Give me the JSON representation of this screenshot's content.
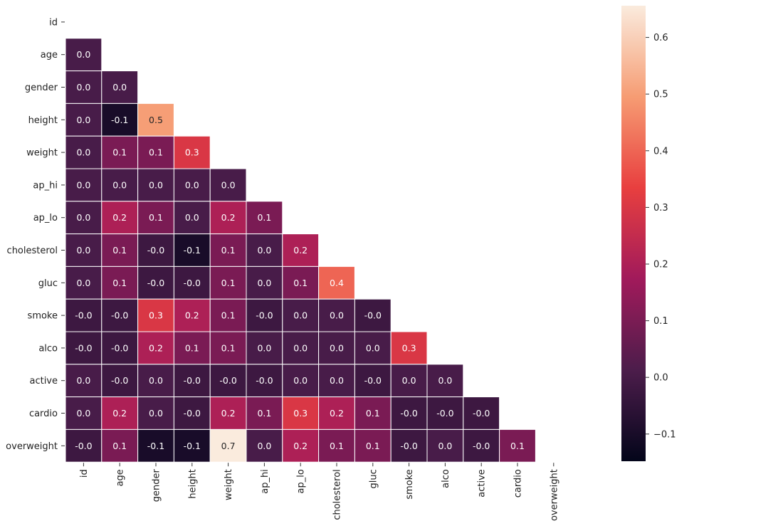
{
  "chart_data": {
    "type": "heatmap",
    "title": "",
    "colormap": "rocket",
    "mask": "upper triangle including diagonal",
    "labels": [
      "id",
      "age",
      "gender",
      "height",
      "weight",
      "ap_hi",
      "ap_lo",
      "cholesterol",
      "gluc",
      "smoke",
      "alco",
      "active",
      "cardio",
      "overweight"
    ],
    "rows": [
      [],
      [
        "0.0"
      ],
      [
        "0.0",
        "0.0"
      ],
      [
        "0.0",
        "-0.1",
        "0.5"
      ],
      [
        "0.0",
        "0.1",
        "0.1",
        "0.3"
      ],
      [
        "0.0",
        "0.0",
        "0.0",
        "0.0",
        "0.0"
      ],
      [
        "0.0",
        "0.2",
        "0.1",
        "0.0",
        "0.2",
        "0.1"
      ],
      [
        "0.0",
        "0.1",
        "-0.0",
        "-0.1",
        "0.1",
        "0.0",
        "0.2"
      ],
      [
        "0.0",
        "0.1",
        "-0.0",
        "-0.0",
        "0.1",
        "0.0",
        "0.1",
        "0.4"
      ],
      [
        "-0.0",
        "-0.0",
        "0.3",
        "0.2",
        "0.1",
        "-0.0",
        "0.0",
        "0.0",
        "-0.0"
      ],
      [
        "-0.0",
        "-0.0",
        "0.2",
        "0.1",
        "0.1",
        "0.0",
        "0.0",
        "0.0",
        "0.0",
        "0.3"
      ],
      [
        "0.0",
        "-0.0",
        "0.0",
        "-0.0",
        "-0.0",
        "-0.0",
        "0.0",
        "0.0",
        "-0.0",
        "0.0",
        "0.0"
      ],
      [
        "0.0",
        "0.2",
        "0.0",
        "-0.0",
        "0.2",
        "0.1",
        "0.3",
        "0.2",
        "0.1",
        "-0.0",
        "-0.0",
        "-0.0"
      ],
      [
        "-0.0",
        "0.1",
        "-0.1",
        "-0.1",
        "0.7",
        "0.0",
        "0.2",
        "0.1",
        "0.1",
        "-0.0",
        "0.0",
        "-0.0",
        "0.1"
      ]
    ],
    "colorbar": {
      "range": [
        -0.148,
        0.656
      ],
      "ticks": [
        "-0.1",
        "0.0",
        "0.1",
        "0.2",
        "0.3",
        "0.4",
        "0.5",
        "0.6"
      ]
    },
    "colors": {
      "rocket_stops": [
        "#03051a",
        "#4c1d4b",
        "#a11a5b",
        "#e83f3f",
        "#f69c73",
        "#faebdd"
      ]
    }
  }
}
